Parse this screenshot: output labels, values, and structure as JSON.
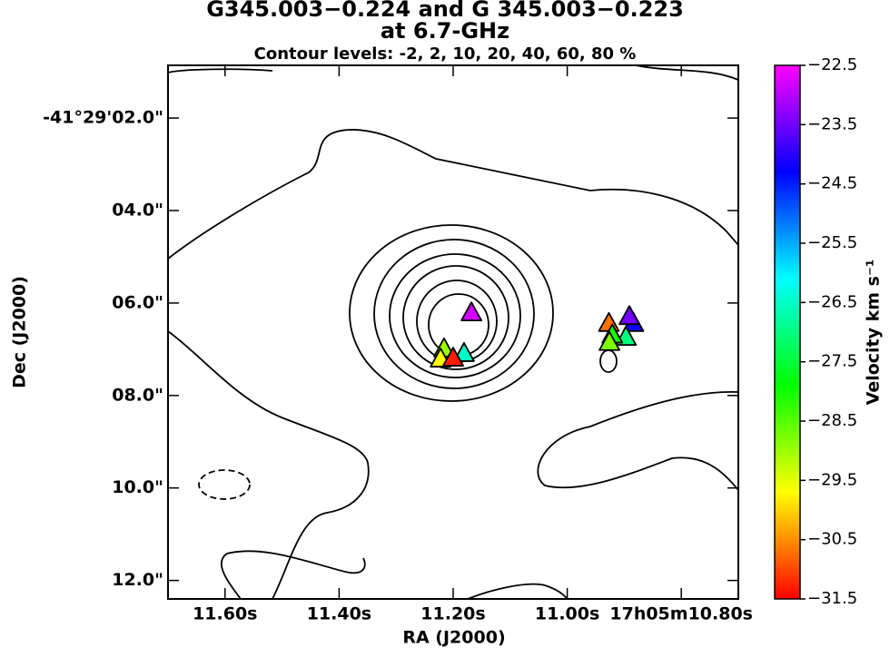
{
  "chart_data": {
    "type": "scatter",
    "title": "G345.003−0.224 and G 345.003−0.223",
    "title_line2": "at 6.7-GHz",
    "subtitle": "Contour levels: -2, 2, 10, 20, 40, 60, 80 %",
    "x_label": "RA (J2000)",
    "y_label": "Dec (J2000)",
    "xlim": [
      11.7,
      10.7
    ],
    "xticks": [
      {
        "value": 11.6,
        "label": "11.60s"
      },
      {
        "value": 11.4,
        "label": "11.40s"
      },
      {
        "value": 11.2,
        "label": "11.20s"
      },
      {
        "value": 11.0,
        "label": "11.00s"
      },
      {
        "value": 10.8,
        "label": "17h05m10.80s"
      }
    ],
    "ylim": [
      12.4,
      0.86
    ],
    "yticks": [
      {
        "value": 2,
        "label": "-41°29'02.0\""
      },
      {
        "value": 4,
        "label": "04.0\""
      },
      {
        "value": 6,
        "label": "06.0\""
      },
      {
        "value": 8,
        "label": "08.0\""
      },
      {
        "value": 10,
        "label": "10.0\""
      },
      {
        "value": 12,
        "label": "12.0\""
      }
    ],
    "x": [
      11.168,
      11.181,
      11.216,
      11.222,
      11.2,
      10.927,
      10.884,
      10.891,
      10.897,
      10.921,
      10.926
    ],
    "y": [
      6.22,
      7.1,
      7.0,
      7.22,
      7.2,
      6.45,
      6.45,
      6.3,
      6.75,
      6.7,
      6.86
    ],
    "velocity": [
      -22.8,
      -26.5,
      -29.0,
      -29.7,
      -31.3,
      -30.7,
      -24.2,
      -23.5,
      -27.0,
      -28.0,
      -28.8
    ],
    "colorbar_label": "Velocity km s⁻¹",
    "clim": [
      -31.5,
      -22.5
    ],
    "cticks": [
      {
        "value": -22.5,
        "label": "−22.5"
      },
      {
        "value": -23.5,
        "label": "−23.5"
      },
      {
        "value": -24.5,
        "label": "−24.5"
      },
      {
        "value": -25.5,
        "label": "−25.5"
      },
      {
        "value": -26.5,
        "label": "−26.5"
      },
      {
        "value": -27.5,
        "label": "−27.5"
      },
      {
        "value": -28.5,
        "label": "−28.5"
      },
      {
        "value": -29.5,
        "label": "−29.5"
      },
      {
        "value": -30.5,
        "label": "−30.5"
      },
      {
        "value": -31.5,
        "label": "−31.5"
      }
    ],
    "colormap": [
      "#ff0000",
      "#ffff00",
      "#00ff00",
      "#00ffff",
      "#0000ff",
      "#ff00ff"
    ]
  }
}
